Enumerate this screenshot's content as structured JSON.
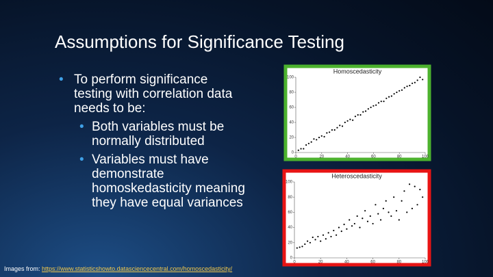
{
  "slide": {
    "title": "Assumptions for Significance Testing",
    "bullets": [
      {
        "text": "To perform significance testing with correlation data needs to be:",
        "sub": [
          "Both variables must be normally distributed",
          "Variables must have demonstrate homoskedasticity meaning they have equal variances"
        ]
      }
    ],
    "footer": {
      "prefix": "Images from:",
      "link": "https://www.statisticshowto.datasciencecentral.com/homoscedasticity/"
    }
  },
  "chart_data": [
    {
      "type": "scatter",
      "title": "Homoscedasticity",
      "border_color": "#4cb22e",
      "color": "#000000",
      "xlim": [
        0,
        100
      ],
      "ylim": [
        0,
        100
      ],
      "xticks": [
        0,
        20,
        40,
        60,
        80,
        100
      ],
      "yticks": [
        0,
        20,
        40,
        60,
        80,
        100
      ],
      "x": [
        2,
        4,
        6,
        8,
        10,
        12,
        14,
        16,
        18,
        20,
        22,
        24,
        26,
        28,
        30,
        32,
        34,
        36,
        38,
        40,
        42,
        44,
        46,
        48,
        50,
        52,
        54,
        56,
        58,
        60,
        62,
        64,
        66,
        68,
        70,
        72,
        74,
        76,
        78,
        80,
        82,
        84,
        86,
        88,
        90,
        92,
        94,
        96,
        98
      ],
      "y": [
        3,
        5,
        5,
        10,
        12,
        14,
        18,
        17,
        20,
        22,
        21,
        26,
        27,
        30,
        30,
        33,
        36,
        35,
        40,
        42,
        44,
        43,
        48,
        50,
        50,
        54,
        55,
        58,
        60,
        62,
        63,
        66,
        68,
        68,
        72,
        74,
        75,
        78,
        80,
        82,
        83,
        86,
        88,
        89,
        92,
        93,
        96,
        100,
        97
      ]
    },
    {
      "type": "scatter",
      "title": "Heteroscedasticity",
      "border_color": "#e81414",
      "color": "#000000",
      "xlim": [
        0,
        100
      ],
      "ylim": [
        0,
        100
      ],
      "xticks": [
        0,
        20,
        40,
        60,
        80,
        100
      ],
      "yticks": [
        0,
        20,
        40,
        60,
        80,
        100
      ],
      "x": [
        2,
        4,
        6,
        8,
        10,
        12,
        14,
        16,
        18,
        20,
        22,
        24,
        26,
        28,
        30,
        32,
        34,
        36,
        38,
        40,
        42,
        44,
        46,
        48,
        50,
        52,
        54,
        56,
        58,
        60,
        62,
        64,
        66,
        68,
        70,
        72,
        74,
        76,
        78,
        80,
        82,
        84,
        86,
        88,
        90,
        92,
        94,
        96,
        98
      ],
      "y": [
        13,
        14,
        15,
        18,
        22,
        20,
        27,
        24,
        28,
        22,
        30,
        25,
        33,
        28,
        36,
        30,
        40,
        35,
        44,
        38,
        50,
        42,
        45,
        55,
        40,
        52,
        62,
        48,
        55,
        45,
        70,
        58,
        50,
        65,
        75,
        60,
        55,
        80,
        62,
        50,
        75,
        88,
        60,
        97,
        65,
        94,
        70,
        90,
        80
      ]
    }
  ]
}
